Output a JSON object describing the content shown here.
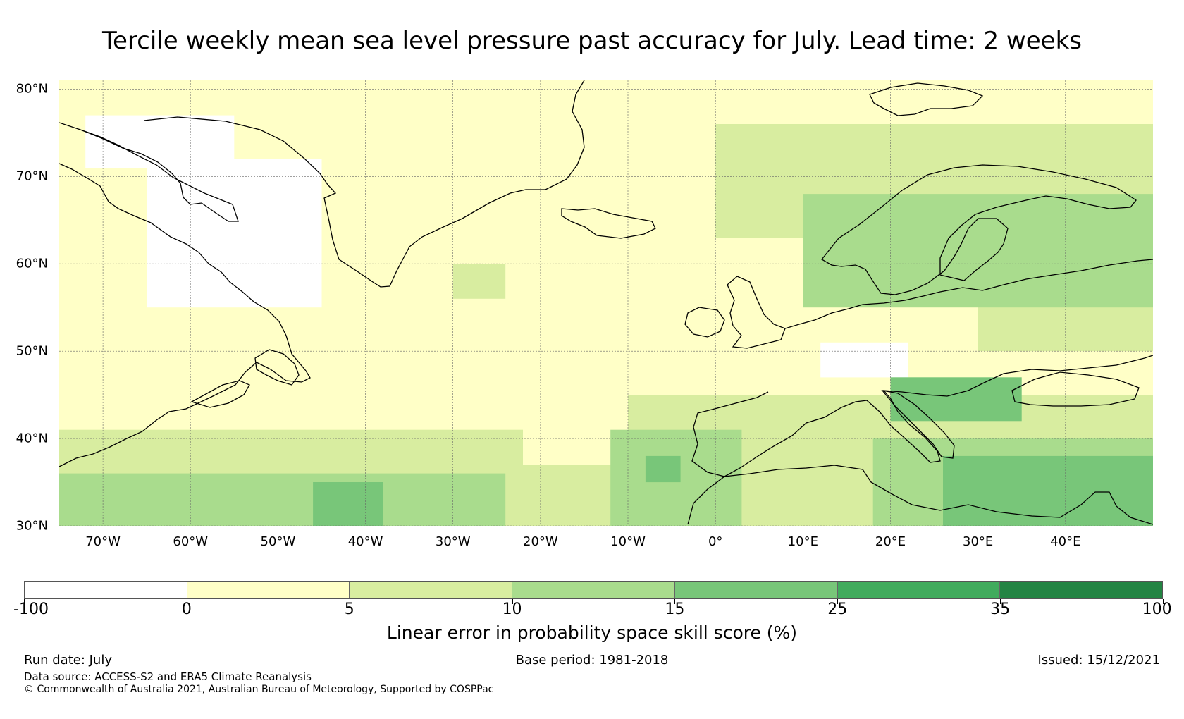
{
  "title": "Tercile weekly mean sea level pressure past accuracy for July. Lead time: 2 weeks",
  "map": {
    "type": "gridded skill map",
    "projection": "equirectangular",
    "lon_range": [
      -75,
      50
    ],
    "lat_range": [
      30,
      81
    ],
    "gridlines": true,
    "lat_labels": [
      "80°N",
      "70°N",
      "60°N",
      "50°N",
      "40°N",
      "30°N"
    ],
    "lat_values": [
      80,
      70,
      60,
      50,
      40,
      30
    ],
    "lon_labels": [
      "70°W",
      "60°W",
      "50°W",
      "40°W",
      "30°W",
      "20°W",
      "10°W",
      "0°",
      "10°E",
      "20°E",
      "30°E",
      "40°E"
    ],
    "lon_values": [
      -70,
      -60,
      -50,
      -40,
      -30,
      -20,
      -10,
      0,
      10,
      20,
      30,
      40
    ],
    "coastline_color": "#000000",
    "skill_regions": [
      {
        "category": "0-5",
        "lon": [
          -75,
          50
        ],
        "lat": [
          30,
          81
        ]
      },
      {
        "category": "<0",
        "lon": [
          -65,
          -45
        ],
        "lat": [
          55,
          72
        ]
      },
      {
        "category": "<0",
        "lon": [
          -72,
          -55
        ],
        "lat": [
          71,
          77
        ]
      },
      {
        "category": "<0",
        "lon": [
          12,
          22
        ],
        "lat": [
          47,
          51
        ]
      },
      {
        "category": "5-10",
        "lon": [
          -75,
          -22
        ],
        "lat": [
          30,
          41
        ]
      },
      {
        "category": "5-10",
        "lon": [
          -22,
          -10
        ],
        "lat": [
          30,
          37
        ]
      },
      {
        "category": "5-10",
        "lon": [
          -10,
          50
        ],
        "lat": [
          30,
          45
        ]
      },
      {
        "category": "5-10",
        "lon": [
          0,
          50
        ],
        "lat": [
          63,
          76
        ]
      },
      {
        "category": "5-10",
        "lon": [
          30,
          50
        ],
        "lat": [
          50,
          63
        ]
      },
      {
        "category": "5-10",
        "lon": [
          -30,
          -24
        ],
        "lat": [
          56,
          60
        ]
      },
      {
        "category": "10-15",
        "lon": [
          -75,
          -24
        ],
        "lat": [
          30,
          36
        ]
      },
      {
        "category": "10-15",
        "lon": [
          -12,
          3
        ],
        "lat": [
          30,
          41
        ]
      },
      {
        "category": "10-15",
        "lon": [
          10,
          50
        ],
        "lat": [
          55,
          68
        ]
      },
      {
        "category": "10-15",
        "lon": [
          18,
          50
        ],
        "lat": [
          30,
          40
        ]
      },
      {
        "category": "15-25",
        "lon": [
          -46,
          -38
        ],
        "lat": [
          30,
          35
        ]
      },
      {
        "category": "15-25",
        "lon": [
          -8,
          -4
        ],
        "lat": [
          35,
          38
        ]
      },
      {
        "category": "15-25",
        "lon": [
          26,
          50
        ],
        "lat": [
          30,
          38
        ]
      },
      {
        "category": "15-25",
        "lon": [
          20,
          35
        ],
        "lat": [
          42,
          47
        ]
      }
    ]
  },
  "colorbar": {
    "boundaries": [
      "-100",
      "0",
      "5",
      "10",
      "15",
      "25",
      "35",
      "100"
    ],
    "colors": [
      "#ffffff",
      "#ffffc7",
      "#d8eda0",
      "#a9dc8d",
      "#78c679",
      "#41ab5d",
      "#238443"
    ],
    "category_keys": [
      "<0",
      "0-5",
      "5-10",
      "10-15",
      "15-25",
      "25-35",
      ">35"
    ],
    "label": "Linear error in probability space skill score (%)"
  },
  "footer": {
    "run_date": "Run date: July",
    "base_period": "Base period: 1981-2018",
    "issued": "Issued: 15/12/2021",
    "data_source": "Data source: ACCESS-S2 and ERA5 Climate Reanalysis",
    "copyright": "© Commonwealth of Australia 2021, Australian Bureau of Meteorology, Supported by COSPPac"
  }
}
